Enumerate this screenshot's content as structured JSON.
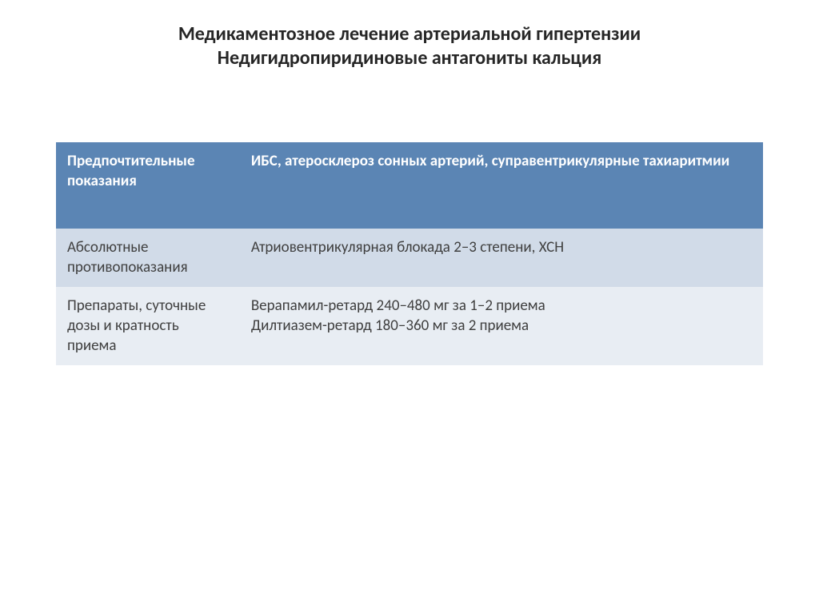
{
  "title": {
    "line1": "Медикаментозное лечение артериальной гипертензии",
    "line2": "Недигидропиридиновые антагониты кальция"
  },
  "table": {
    "colors": {
      "header_bg": "#5b85b4",
      "header_text": "#ffffff",
      "alt1_bg": "#e8edf3",
      "alt2_bg": "#d1dbe8",
      "body_text": "#404040"
    },
    "rows": [
      {
        "left": "Предпочтительные показания",
        "right": "ИБС, атеросклероз сонных артерий, суправентрикулярные тахиаритмии"
      },
      {
        "left": "Абсолютные противопоказания",
        "right": "Атриовентрикулярная блокада 2–3 степени, ХСН"
      },
      {
        "left": "Препараты, суточные дозы и кратность приема",
        "right": "Верапамил-ретард 240–480 мг за 1–2 приема\nДилтиазем-ретард 180–360 мг за 2 приема"
      }
    ]
  }
}
